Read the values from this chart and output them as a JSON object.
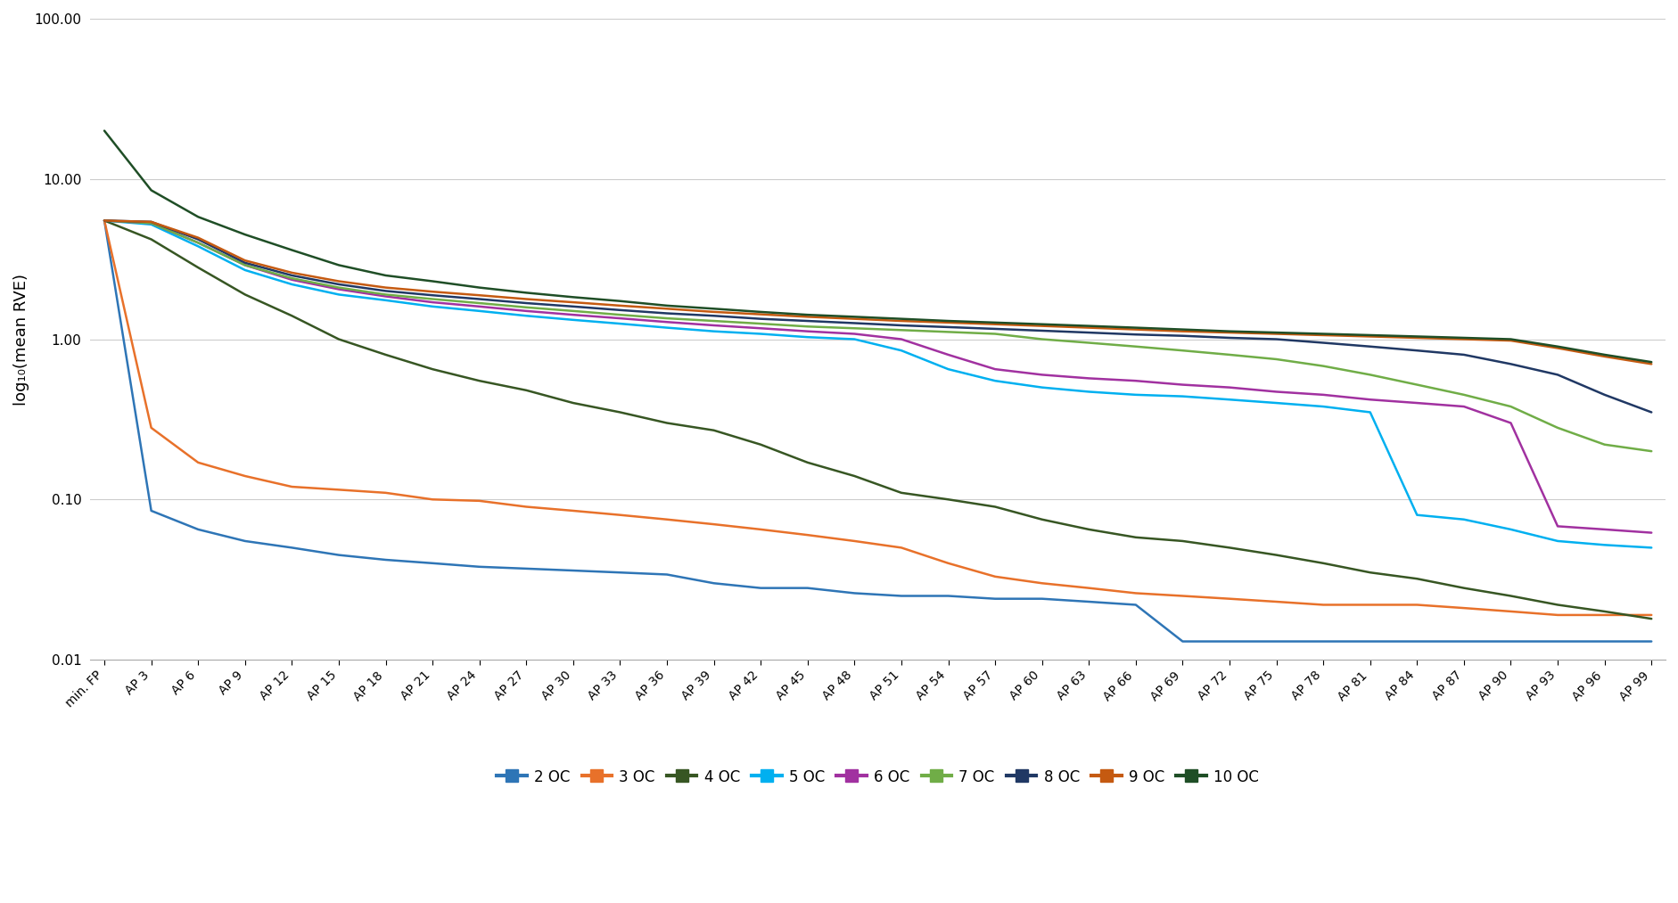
{
  "x_labels": [
    "min. FP",
    "AP 3",
    "AP 6",
    "AP 9",
    "AP 12",
    "AP 15",
    "AP 18",
    "AP 21",
    "AP 24",
    "AP 27",
    "AP 30",
    "AP 33",
    "AP 36",
    "AP 39",
    "AP 42",
    "AP 45",
    "AP 48",
    "AP 51",
    "AP 54",
    "AP 57",
    "AP 60",
    "AP 63",
    "AP 66",
    "AP 69",
    "AP 72",
    "AP 75",
    "AP 78",
    "AP 81",
    "AP 84",
    "AP 87",
    "AP 90",
    "AP 93",
    "AP 96",
    "AP 99"
  ],
  "series": {
    "2 OC": {
      "color": "#2E75B6",
      "values": [
        5.5,
        0.085,
        0.065,
        0.055,
        0.05,
        0.045,
        0.042,
        0.04,
        0.038,
        0.037,
        0.036,
        0.035,
        0.034,
        0.03,
        0.028,
        0.028,
        0.026,
        0.025,
        0.025,
        0.024,
        0.024,
        0.023,
        0.022,
        0.013,
        0.013,
        0.013,
        0.013,
        0.013,
        0.013,
        0.013,
        0.013,
        0.013,
        0.013,
        0.013
      ]
    },
    "3 OC": {
      "color": "#E8712A",
      "values": [
        5.5,
        0.28,
        0.17,
        0.14,
        0.12,
        0.115,
        0.11,
        0.1,
        0.098,
        0.09,
        0.085,
        0.08,
        0.075,
        0.07,
        0.065,
        0.06,
        0.055,
        0.05,
        0.04,
        0.033,
        0.03,
        0.028,
        0.026,
        0.025,
        0.024,
        0.023,
        0.022,
        0.022,
        0.022,
        0.021,
        0.02,
        0.019,
        0.019,
        0.019
      ]
    },
    "4 OC": {
      "color": "#375623",
      "values": [
        5.5,
        4.2,
        2.8,
        1.9,
        1.4,
        1.0,
        0.8,
        0.65,
        0.55,
        0.48,
        0.4,
        0.35,
        0.3,
        0.27,
        0.22,
        0.17,
        0.14,
        0.11,
        0.1,
        0.09,
        0.075,
        0.065,
        0.058,
        0.055,
        0.05,
        0.045,
        0.04,
        0.035,
        0.032,
        0.028,
        0.025,
        0.022,
        0.02,
        0.018
      ]
    },
    "5 OC": {
      "color": "#00B0F0",
      "values": [
        5.5,
        5.2,
        3.8,
        2.7,
        2.2,
        1.9,
        1.75,
        1.6,
        1.5,
        1.4,
        1.32,
        1.25,
        1.18,
        1.12,
        1.08,
        1.03,
        1.0,
        0.85,
        0.65,
        0.55,
        0.5,
        0.47,
        0.45,
        0.44,
        0.42,
        0.4,
        0.38,
        0.35,
        0.08,
        0.075,
        0.065,
        0.055,
        0.052,
        0.05
      ]
    },
    "6 OC": {
      "color": "#A131A0",
      "values": [
        5.5,
        5.3,
        4.0,
        2.9,
        2.35,
        2.05,
        1.85,
        1.7,
        1.6,
        1.5,
        1.42,
        1.35,
        1.28,
        1.22,
        1.17,
        1.12,
        1.08,
        1.0,
        0.8,
        0.65,
        0.6,
        0.57,
        0.55,
        0.52,
        0.5,
        0.47,
        0.45,
        0.42,
        0.4,
        0.38,
        0.3,
        0.068,
        0.065,
        0.062
      ]
    },
    "7 OC": {
      "color": "#70AD47",
      "values": [
        5.5,
        5.3,
        4.0,
        2.9,
        2.4,
        2.1,
        1.9,
        1.78,
        1.68,
        1.58,
        1.5,
        1.42,
        1.35,
        1.3,
        1.25,
        1.2,
        1.17,
        1.14,
        1.11,
        1.08,
        1.0,
        0.95,
        0.9,
        0.85,
        0.8,
        0.75,
        0.68,
        0.6,
        0.52,
        0.45,
        0.38,
        0.28,
        0.22,
        0.2
      ]
    },
    "8 OC": {
      "color": "#203864",
      "values": [
        5.5,
        5.4,
        4.2,
        3.0,
        2.5,
        2.2,
        2.0,
        1.88,
        1.78,
        1.68,
        1.6,
        1.52,
        1.45,
        1.4,
        1.34,
        1.3,
        1.26,
        1.22,
        1.19,
        1.16,
        1.13,
        1.1,
        1.07,
        1.05,
        1.02,
        1.0,
        0.95,
        0.9,
        0.85,
        0.8,
        0.7,
        0.6,
        0.45,
        0.35
      ]
    },
    "9 OC": {
      "color": "#C55A11",
      "values": [
        5.5,
        5.4,
        4.3,
        3.1,
        2.6,
        2.3,
        2.1,
        1.98,
        1.88,
        1.78,
        1.7,
        1.62,
        1.55,
        1.48,
        1.43,
        1.38,
        1.34,
        1.3,
        1.27,
        1.24,
        1.21,
        1.18,
        1.15,
        1.12,
        1.1,
        1.08,
        1.06,
        1.04,
        1.02,
        1.0,
        0.98,
        0.88,
        0.78,
        0.7
      ]
    },
    "10 OC": {
      "color": "#1F4E26",
      "values": [
        20.0,
        8.5,
        5.8,
        4.5,
        3.6,
        2.9,
        2.5,
        2.3,
        2.1,
        1.95,
        1.83,
        1.73,
        1.62,
        1.55,
        1.48,
        1.42,
        1.38,
        1.34,
        1.3,
        1.27,
        1.24,
        1.21,
        1.18,
        1.15,
        1.12,
        1.1,
        1.08,
        1.06,
        1.04,
        1.02,
        1.0,
        0.9,
        0.8,
        0.72
      ]
    }
  },
  "ylabel": "log₁₀(mean RVE)",
  "ylim_log": [
    0.01,
    100.0
  ],
  "yticks": [
    0.01,
    0.1,
    1.0,
    10.0,
    100.0
  ],
  "background_color": "#ffffff",
  "grid_color": "#cccccc",
  "line_width": 1.8,
  "legend_order": [
    "2 OC",
    "3 OC",
    "4 OC",
    "5 OC",
    "6 OC",
    "7 OC",
    "8 OC",
    "9 OC",
    "10 OC"
  ]
}
